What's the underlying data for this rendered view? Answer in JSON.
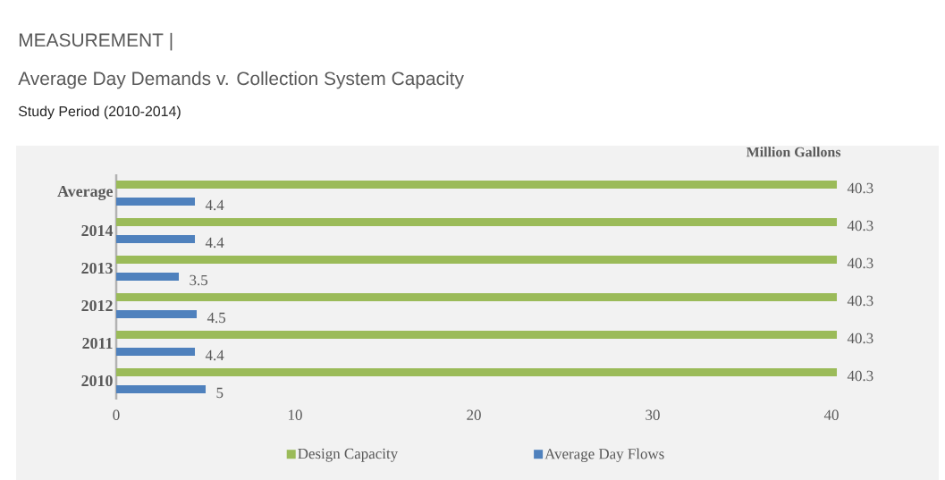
{
  "chart_data": {
    "type": "bar",
    "orientation": "horizontal",
    "title": "MEASUREMENT |",
    "subtitle": "Average Day Demands v. Collection System Capacity",
    "annotations": [
      "Study Period (2010-2014)"
    ],
    "xlabel": "Million Gallons",
    "categories": [
      "Average",
      "2014",
      "2013",
      "2012",
      "2011",
      "2010"
    ],
    "series": [
      {
        "name": "Design Capacity",
        "color": "#9bbb59",
        "values": [
          40.3,
          40.3,
          40.3,
          40.3,
          40.3,
          40.3
        ]
      },
      {
        "name": "Average Day Flows",
        "color": "#4f81bd",
        "values": [
          4.4,
          4.4,
          3.5,
          4.5,
          4.4,
          5
        ]
      }
    ],
    "xlim": [
      0,
      40.3
    ],
    "xticks": [
      0,
      10,
      20,
      30,
      40
    ],
    "data_labels": true,
    "legend": "bottom"
  }
}
